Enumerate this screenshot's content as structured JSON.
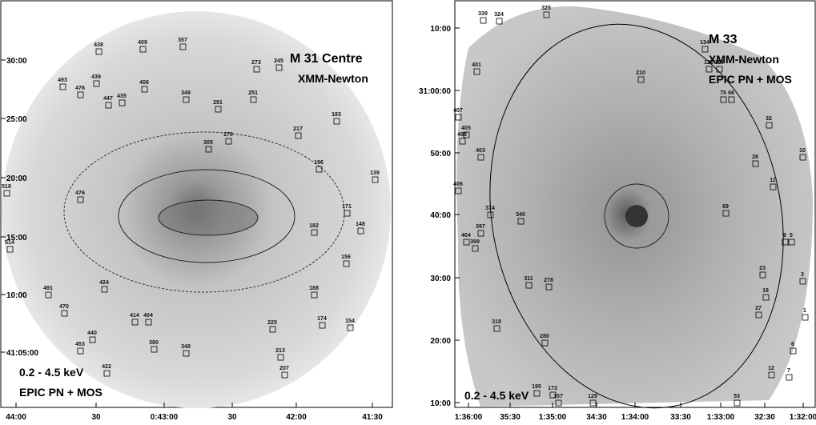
{
  "panels": [
    {
      "title": "M 31 Centre",
      "instrument": "XMM-Newton",
      "band": "0.2 - 4.5 keV",
      "detector": "EPIC PN + MOS",
      "x_ticks": [
        "44:00",
        "30",
        "0:43:00",
        "30",
        "42:00",
        "41:30"
      ],
      "y_ticks": [
        "30:00",
        "25:00",
        "20:00",
        "15:00",
        "10:00",
        "41:05:00"
      ],
      "sources": [
        "438",
        "409",
        "357",
        "273",
        "245",
        "493",
        "476",
        "439",
        "406",
        "447",
        "435",
        "349",
        "291",
        "251",
        "217",
        "183",
        "305",
        "279",
        "196",
        "139",
        "518",
        "476",
        "171",
        "182",
        "148",
        "514",
        "156",
        "491",
        "424",
        "188",
        "470",
        "414",
        "404",
        "174",
        "154",
        "440",
        "225",
        "453",
        "380",
        "348",
        "213",
        "422",
        "207"
      ]
    },
    {
      "title": "M 33",
      "instrument": "XMM-Newton",
      "band": "0.2 - 4.5 keV",
      "detector": "EPIC PN + MOS",
      "x_ticks": [
        "1:36:00",
        "35:30",
        "1:35:00",
        "34:30",
        "1:34:00",
        "33:30",
        "1:33:00",
        "32:30",
        "1:32:00"
      ],
      "y_ticks": [
        "10:00",
        "31:00:00",
        "50:00",
        "40:00",
        "30:00",
        "20:00",
        "10:00"
      ],
      "sources": [
        "339",
        "324",
        "325",
        "134",
        "122",
        "113",
        "401",
        "210",
        "75",
        "66",
        "405",
        "407",
        "408",
        "403",
        "32",
        "10",
        "28",
        "11",
        "406",
        "374",
        "69",
        "340",
        "397",
        "404",
        "399",
        "9",
        "5",
        "23",
        "3",
        "311",
        "278",
        "18",
        "27",
        "1",
        "318",
        "280",
        "6",
        "12",
        "7",
        "195",
        "173",
        "157",
        "129",
        "53"
      ]
    }
  ]
}
